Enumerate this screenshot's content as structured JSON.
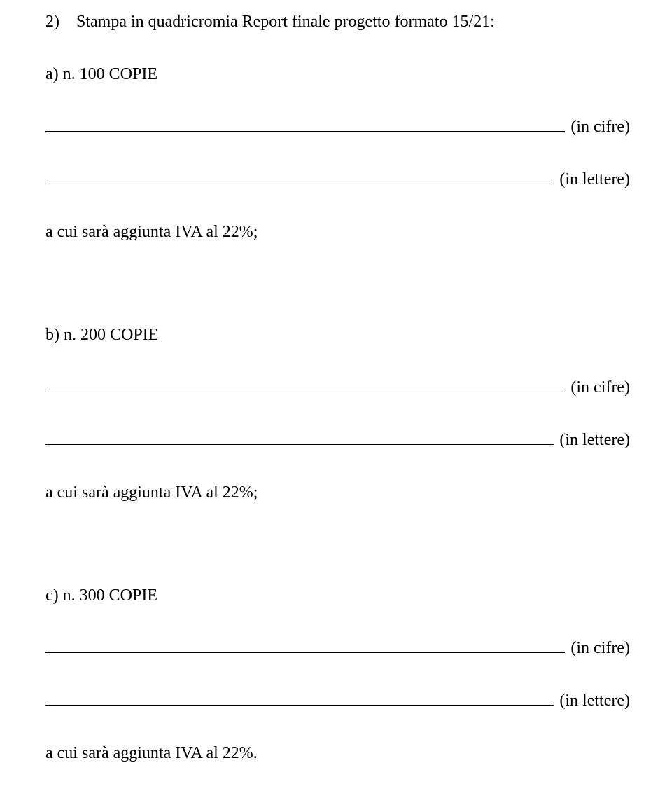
{
  "heading": "2) Stampa in quadricromia Report finale progetto formato 15/21:",
  "labels": {
    "in_cifre": "(in cifre)",
    "in_lettere": "(in lettere)"
  },
  "sections": {
    "a": {
      "label": "a) n. 100 COPIE",
      "iva": "a cui sarà aggiunta IVA al 22%;"
    },
    "b": {
      "label": "b) n. 200 COPIE",
      "iva": "a cui sarà aggiunta IVA al 22%;"
    },
    "c": {
      "label": "c) n. 300 COPIE",
      "iva": "a cui sarà aggiunta IVA al 22%."
    }
  }
}
